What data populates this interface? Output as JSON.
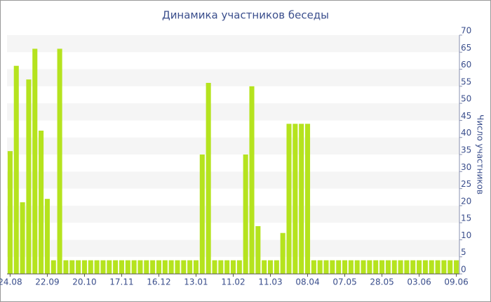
{
  "chart_data": {
    "type": "bar",
    "title": "Динамика участников беседы",
    "y_label": "Число участников",
    "categories": [
      "24.08",
      null,
      null,
      null,
      null,
      null,
      "22.09",
      null,
      null,
      null,
      null,
      null,
      "20.10",
      null,
      null,
      null,
      null,
      null,
      "17.11",
      null,
      null,
      null,
      null,
      null,
      "16.12",
      null,
      null,
      null,
      null,
      null,
      "13.01",
      null,
      null,
      null,
      null,
      null,
      "11.02",
      null,
      null,
      null,
      null,
      null,
      "11.03",
      null,
      null,
      null,
      null,
      null,
      "08.04",
      null,
      null,
      null,
      null,
      null,
      "07.05",
      null,
      null,
      null,
      null,
      null,
      "28.05",
      null,
      null,
      null,
      null,
      null,
      "03.06",
      null,
      null,
      null,
      null,
      null,
      "09.06"
    ],
    "values": [
      36,
      61,
      21,
      57,
      66,
      42,
      22,
      4,
      66,
      4,
      4,
      4,
      4,
      4,
      4,
      4,
      4,
      4,
      4,
      4,
      4,
      4,
      4,
      4,
      4,
      4,
      4,
      4,
      4,
      4,
      4,
      35,
      56,
      4,
      4,
      4,
      4,
      4,
      35,
      55,
      14,
      4,
      4,
      4,
      12,
      44,
      44,
      44,
      44,
      4,
      4,
      4,
      4,
      4,
      4,
      4,
      4,
      4,
      4,
      4,
      4,
      4,
      4,
      4,
      4,
      4,
      4,
      4,
      4,
      4,
      4,
      4,
      4
    ],
    "color": "#b5e31e",
    "ylim": [
      0,
      70
    ],
    "yticks": [
      0,
      5,
      10,
      15,
      20,
      25,
      30,
      35,
      40,
      45,
      50,
      55,
      60,
      65,
      70
    ],
    "grid": true,
    "y_axis_side": "right"
  }
}
